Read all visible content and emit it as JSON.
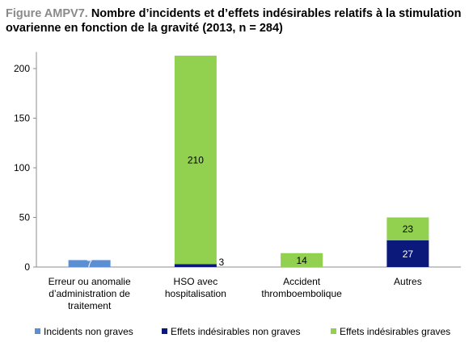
{
  "title": {
    "lead": "Figure AMPV7.",
    "text": "Nombre d’incidents et d’effets indésirables relatifs à la stimulation ovarienne en fonction de la gravité (2013, n = 284)"
  },
  "chart_data": {
    "type": "bar",
    "stacked": true,
    "categories": [
      [
        "Erreur ou anomalie",
        "d’administration de",
        "traitement"
      ],
      [
        "HSO avec",
        "hospitalisation"
      ],
      [
        "Accident",
        "thromboembolique"
      ],
      [
        "Autres"
      ]
    ],
    "series": [
      {
        "name": "Incidents non graves",
        "color": "#5b8fd4",
        "values": [
          7,
          0,
          0,
          0
        ],
        "labels": [
          "7",
          "",
          "",
          ""
        ]
      },
      {
        "name": "Effets indésirables non graves",
        "color": "#0b1a7a",
        "values": [
          0,
          3,
          0,
          27
        ],
        "labels": [
          "",
          "3",
          "",
          "27"
        ]
      },
      {
        "name": "Effets indésirables graves",
        "color": "#92d050",
        "values": [
          0,
          210,
          14,
          23
        ],
        "labels": [
          "",
          "210",
          "14",
          "23"
        ]
      }
    ],
    "yticks": [
      "0",
      "50",
      "100",
      "150",
      "200"
    ],
    "ylim": [
      0,
      215
    ],
    "grid": false,
    "legend_position": "bottom"
  }
}
